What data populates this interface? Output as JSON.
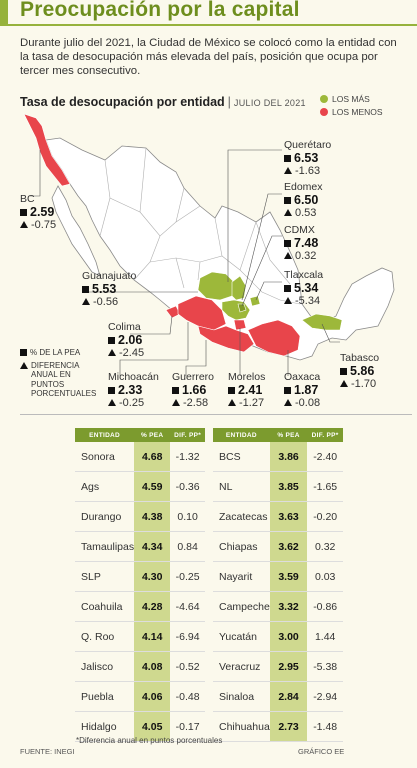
{
  "title": "Preocupación por la capital",
  "intro": "Durante julio del 2021, la Ciudad de México se colocó como la entidad con la tasa de desocupación más elevada del país, posición que ocupa por tercer mes consecutivo.",
  "map": {
    "title": "Tasa de desocupación por entidad",
    "separator": "|",
    "date": "JULIO DEL 2021",
    "legend": [
      {
        "label": "LOS MÁS",
        "color": "#9db83a"
      },
      {
        "label": "LOS MENOS",
        "color": "#e8454b"
      }
    ],
    "key": {
      "pea": "% DE LA PEA",
      "diff": "DIFERENCIA ANUAL EN PUNTOS PORCENTUALES"
    },
    "states": [
      {
        "id": "bc",
        "name": "BC",
        "pea": "2.59",
        "diff": "-0.75"
      },
      {
        "id": "queretaro",
        "name": "Querétaro",
        "pea": "6.53",
        "diff": "-1.63"
      },
      {
        "id": "edomex",
        "name": "Edomex",
        "pea": "6.50",
        "diff": "0.53"
      },
      {
        "id": "cdmx",
        "name": "CDMX",
        "pea": "7.48",
        "diff": "0.32"
      },
      {
        "id": "tlaxcala",
        "name": "Tlaxcala",
        "pea": "5.34",
        "diff": "-5.34"
      },
      {
        "id": "guanajuato",
        "name": "Guanajuato",
        "pea": "5.53",
        "diff": "-0.56"
      },
      {
        "id": "colima",
        "name": "Colima",
        "pea": "2.06",
        "diff": "-2.45"
      },
      {
        "id": "tabasco",
        "name": "Tabasco",
        "pea": "5.86",
        "diff": "-1.70"
      },
      {
        "id": "michoacan",
        "name": "Michoacán",
        "pea": "2.33",
        "diff": "-0.25"
      },
      {
        "id": "guerrero",
        "name": "Guerrero",
        "pea": "1.66",
        "diff": "-2.58"
      },
      {
        "id": "morelos",
        "name": "Morelos",
        "pea": "2.41",
        "diff": "-1.27"
      },
      {
        "id": "oaxaca",
        "name": "Oaxaca",
        "pea": "1.87",
        "diff": "-0.08"
      }
    ]
  },
  "table": {
    "headers": {
      "entity": "ENTIDAD",
      "pea": "% PEA",
      "diff": "DIF. PP*"
    },
    "left": [
      {
        "name": "Sonora",
        "pea": "4.68",
        "diff": "-1.32"
      },
      {
        "name": "Ags",
        "pea": "4.59",
        "diff": "-0.36"
      },
      {
        "name": "Durango",
        "pea": "4.38",
        "diff": "0.10"
      },
      {
        "name": "Tamaulipas",
        "pea": "4.34",
        "diff": "0.84"
      },
      {
        "name": "SLP",
        "pea": "4.30",
        "diff": "-0.25"
      },
      {
        "name": "Coahuila",
        "pea": "4.28",
        "diff": "-4.64"
      },
      {
        "name": "Q. Roo",
        "pea": "4.14",
        "diff": "-6.94"
      },
      {
        "name": "Jalisco",
        "pea": "4.08",
        "diff": "-0.52"
      },
      {
        "name": "Puebla",
        "pea": "4.06",
        "diff": "-0.48"
      },
      {
        "name": "Hidalgo",
        "pea": "4.05",
        "diff": "-0.17"
      }
    ],
    "right": [
      {
        "name": "BCS",
        "pea": "3.86",
        "diff": "-2.40"
      },
      {
        "name": "NL",
        "pea": "3.85",
        "diff": "-1.65"
      },
      {
        "name": "Zacatecas",
        "pea": "3.63",
        "diff": "-0.20"
      },
      {
        "name": "Chiapas",
        "pea": "3.62",
        "diff": "0.32"
      },
      {
        "name": "Nayarit",
        "pea": "3.59",
        "diff": "0.03"
      },
      {
        "name": "Campeche",
        "pea": "3.32",
        "diff": "-0.86"
      },
      {
        "name": "Yucatán",
        "pea": "3.00",
        "diff": "1.44"
      },
      {
        "name": "Veracruz",
        "pea": "2.95",
        "diff": "-5.38"
      },
      {
        "name": "Sinaloa",
        "pea": "2.84",
        "diff": "-2.94"
      },
      {
        "name": "Chihuahua",
        "pea": "2.73",
        "diff": "-1.48"
      }
    ]
  },
  "footnote": "*Diferencia anual en puntos porcentuales",
  "source": "FUENTE: INEGI",
  "credit": "GRÁFICO EE"
}
